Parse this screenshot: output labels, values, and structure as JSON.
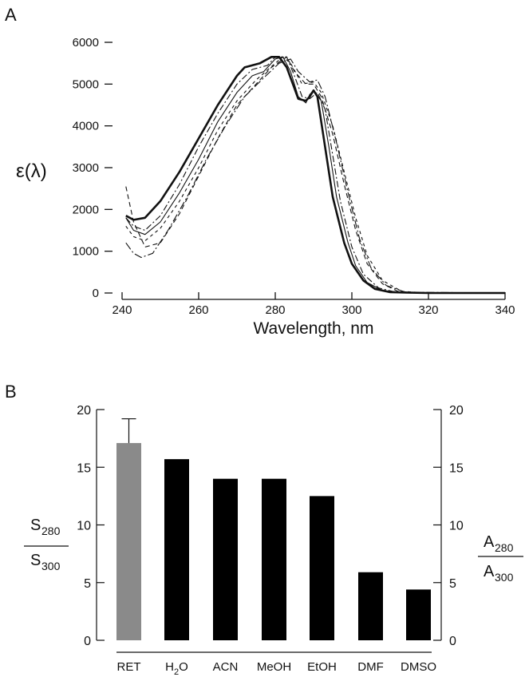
{
  "chart_data": [
    {
      "panel_label": "A",
      "type": "line",
      "xlabel": "Wavelength, nm",
      "ylabel": "ε(λ)",
      "xlim": [
        240,
        340
      ],
      "ylim": [
        0,
        6000
      ],
      "xticks": [
        240,
        260,
        280,
        300,
        320,
        340
      ],
      "yticks": [
        0,
        1000,
        2000,
        3000,
        4000,
        5000,
        6000
      ],
      "grid": false,
      "series": [
        {
          "name": "thick-solid",
          "style": "thick",
          "points": [
            [
              241,
              1850
            ],
            [
              243,
              1750
            ],
            [
              246,
              1800
            ],
            [
              250,
              2200
            ],
            [
              255,
              2900
            ],
            [
              260,
              3700
            ],
            [
              265,
              4500
            ],
            [
              270,
              5200
            ],
            [
              272,
              5400
            ],
            [
              276,
              5500
            ],
            [
              279,
              5650
            ],
            [
              281,
              5650
            ],
            [
              283,
              5400
            ],
            [
              285,
              4900
            ],
            [
              286,
              4650
            ],
            [
              288,
              4600
            ],
            [
              289,
              4700
            ],
            [
              290,
              4850
            ],
            [
              291,
              4700
            ],
            [
              293,
              3500
            ],
            [
              295,
              2300
            ],
            [
              298,
              1200
            ],
            [
              300,
              700
            ],
            [
              303,
              300
            ],
            [
              306,
              100
            ],
            [
              310,
              20
            ],
            [
              320,
              0
            ],
            [
              340,
              0
            ]
          ]
        },
        {
          "name": "thin-solid",
          "style": "solid",
          "points": [
            [
              241,
              1800
            ],
            [
              243,
              1500
            ],
            [
              246,
              1400
            ],
            [
              250,
              1700
            ],
            [
              255,
              2400
            ],
            [
              260,
              3200
            ],
            [
              265,
              4100
            ],
            [
              270,
              4800
            ],
            [
              274,
              5200
            ],
            [
              277,
              5300
            ],
            [
              280,
              5600
            ],
            [
              282,
              5650
            ],
            [
              284,
              5300
            ],
            [
              286,
              4700
            ],
            [
              288,
              4550
            ],
            [
              289,
              4750
            ],
            [
              290,
              4850
            ],
            [
              292,
              4600
            ],
            [
              294,
              3500
            ],
            [
              296,
              2300
            ],
            [
              299,
              1200
            ],
            [
              301,
              650
            ],
            [
              304,
              250
            ],
            [
              308,
              60
            ],
            [
              315,
              0
            ],
            [
              340,
              0
            ]
          ]
        },
        {
          "name": "dash-dot-1",
          "style": "8,3,2,3",
          "points": [
            [
              241,
              1800
            ],
            [
              243,
              1600
            ],
            [
              246,
              1500
            ],
            [
              250,
              1850
            ],
            [
              255,
              2600
            ],
            [
              260,
              3500
            ],
            [
              265,
              4300
            ],
            [
              270,
              5000
            ],
            [
              274,
              5350
            ],
            [
              278,
              5450
            ],
            [
              280,
              5650
            ],
            [
              283,
              5650
            ],
            [
              285,
              5200
            ],
            [
              287,
              4700
            ],
            [
              289,
              4650
            ],
            [
              291,
              4800
            ],
            [
              293,
              4400
            ],
            [
              295,
              3300
            ],
            [
              297,
              2200
            ],
            [
              300,
              1100
            ],
            [
              303,
              450
            ],
            [
              307,
              120
            ],
            [
              312,
              10
            ],
            [
              340,
              0
            ]
          ]
        },
        {
          "name": "dashed-1",
          "style": "6,4",
          "points": [
            [
              241,
              2550
            ],
            [
              243,
              1700
            ],
            [
              246,
              1100
            ],
            [
              250,
              1200
            ],
            [
              255,
              1900
            ],
            [
              260,
              2800
            ],
            [
              265,
              3700
            ],
            [
              270,
              4500
            ],
            [
              275,
              5000
            ],
            [
              279,
              5400
            ],
            [
              283,
              5650
            ],
            [
              285,
              5300
            ],
            [
              288,
              5000
            ],
            [
              290,
              5000
            ],
            [
              292,
              4700
            ],
            [
              295,
              3800
            ],
            [
              298,
              2600
            ],
            [
              301,
              1500
            ],
            [
              304,
              700
            ],
            [
              308,
              220
            ],
            [
              312,
              40
            ],
            [
              318,
              0
            ],
            [
              340,
              0
            ]
          ]
        },
        {
          "name": "dash-dot-2",
          "style": "10,3,2,3",
          "points": [
            [
              241,
              1200
            ],
            [
              243,
              950
            ],
            [
              245,
              850
            ],
            [
              248,
              950
            ],
            [
              252,
              1500
            ],
            [
              257,
              2300
            ],
            [
              262,
              3200
            ],
            [
              267,
              4000
            ],
            [
              272,
              4700
            ],
            [
              277,
              5150
            ],
            [
              281,
              5500
            ],
            [
              284,
              5600
            ],
            [
              286,
              5300
            ],
            [
              289,
              5050
            ],
            [
              291,
              5100
            ],
            [
              293,
              4700
            ],
            [
              296,
              3600
            ],
            [
              299,
              2400
            ],
            [
              302,
              1300
            ],
            [
              305,
              600
            ],
            [
              309,
              180
            ],
            [
              314,
              20
            ],
            [
              340,
              0
            ]
          ]
        },
        {
          "name": "dashed-2",
          "style": "4,4",
          "points": [
            [
              241,
              1600
            ],
            [
              243,
              1350
            ],
            [
              246,
              1250
            ],
            [
              250,
              1550
            ],
            [
              255,
              2200
            ],
            [
              260,
              3000
            ],
            [
              265,
              3900
            ],
            [
              270,
              4600
            ],
            [
              275,
              5100
            ],
            [
              280,
              5500
            ],
            [
              282,
              5650
            ],
            [
              284,
              5500
            ],
            [
              287,
              5000
            ],
            [
              290,
              5050
            ],
            [
              292,
              4800
            ],
            [
              295,
              4000
            ],
            [
              298,
              2900
            ],
            [
              301,
              1800
            ],
            [
              304,
              900
            ],
            [
              308,
              300
            ],
            [
              313,
              40
            ],
            [
              320,
              0
            ],
            [
              340,
              0
            ]
          ]
        }
      ]
    },
    {
      "panel_label": "B",
      "type": "bar",
      "categories": [
        "RET",
        "H2O",
        "ACN",
        "MeOH",
        "EtOH",
        "DMF",
        "DMSO"
      ],
      "values": [
        17.1,
        15.7,
        14.0,
        14.0,
        12.5,
        5.9,
        4.4
      ],
      "error_bars": [
        2.1,
        null,
        null,
        null,
        null,
        null,
        null
      ],
      "bar_colors": [
        "#8a8a8a",
        "#000000",
        "#000000",
        "#000000",
        "#000000",
        "#000000",
        "#000000"
      ],
      "ylim": [
        0,
        20
      ],
      "yticks": [
        0,
        5,
        10,
        15,
        20
      ],
      "ylabel_left": {
        "num": "S",
        "num_sub": "280",
        "den": "S",
        "den_sub": "300"
      },
      "ylabel_right": {
        "num": "A",
        "num_sub": "280",
        "den": "A",
        "den_sub": "300"
      },
      "grid": false
    }
  ]
}
